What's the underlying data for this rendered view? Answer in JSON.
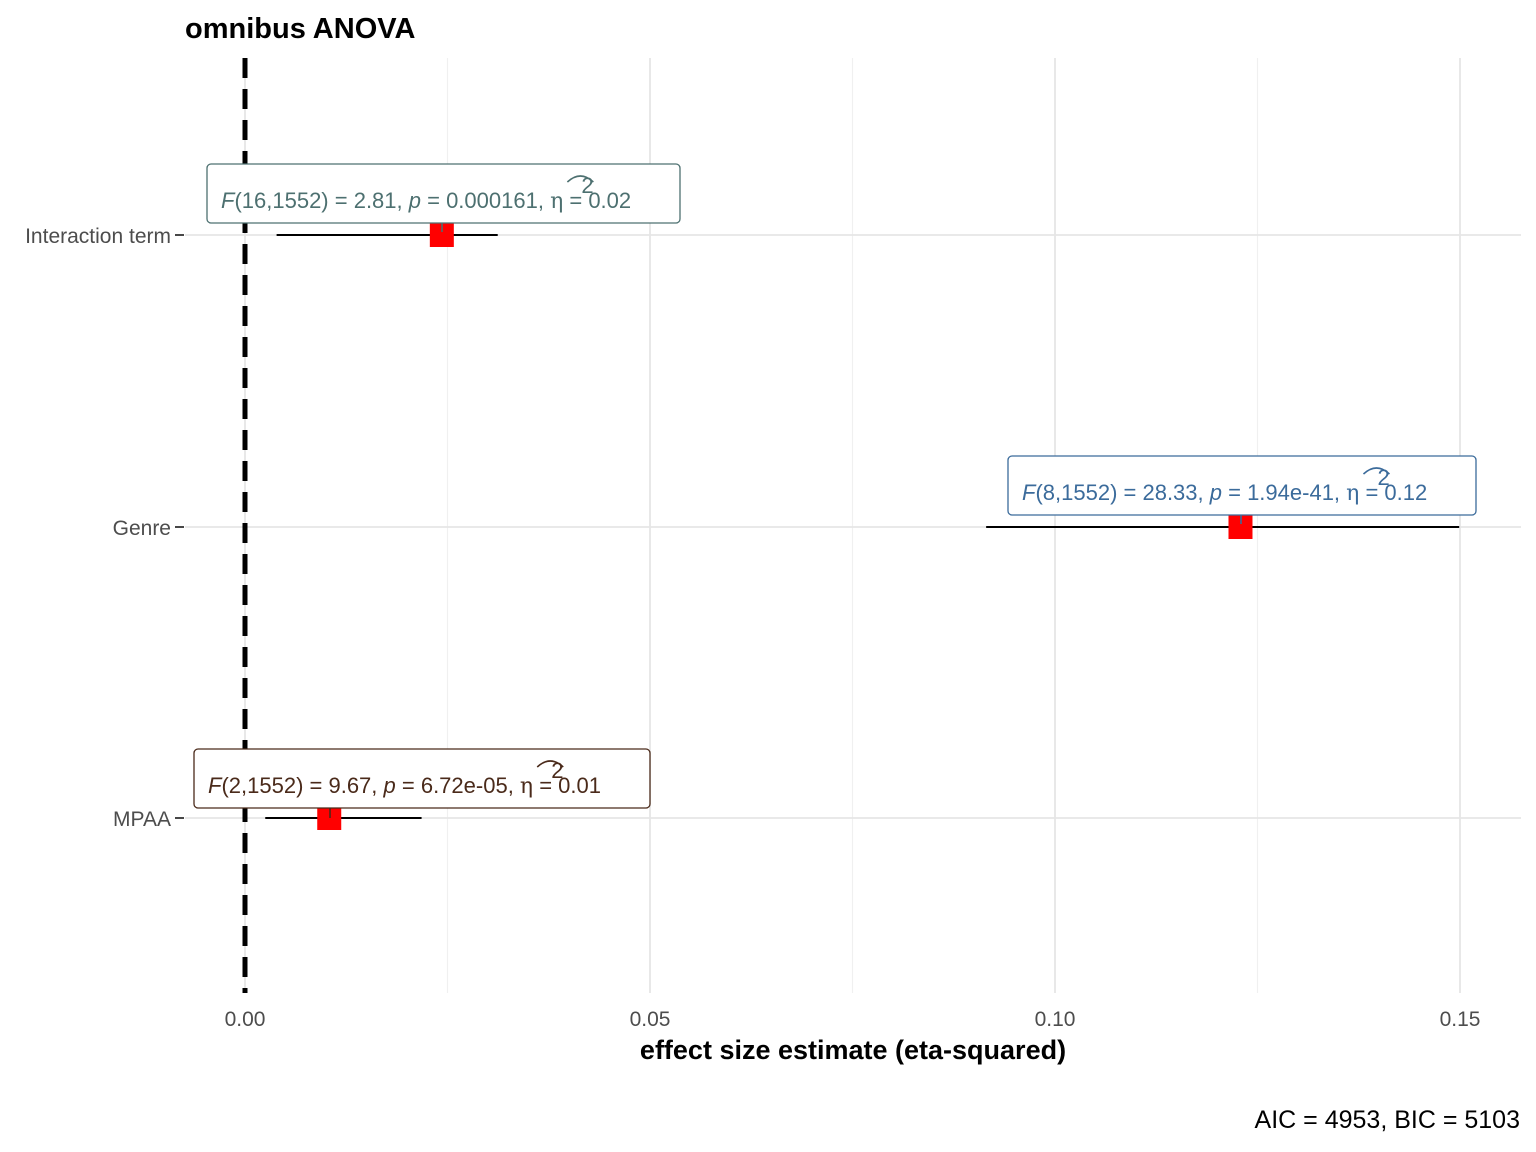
{
  "chart_data": {
    "type": "scatter",
    "title": "omnibus ANOVA",
    "xlabel": "effect size estimate (eta-squared)",
    "caption": "AIC = 4953, BIC = 5103",
    "categories": [
      "Interaction term",
      "Genre",
      "MPAA"
    ],
    "xlim": [
      -0.016,
      0.157
    ],
    "x_ticks": [
      "0.00",
      "0.05",
      "0.10",
      "0.15"
    ],
    "x_tick_values": [
      0.0,
      0.05,
      0.1,
      0.15
    ],
    "reference_line": 0,
    "grid": true,
    "points": [
      {
        "term": "Interaction term",
        "estimate": 0.0243,
        "ci_low": 0.0039,
        "ci_high": 0.0312,
        "label_color": "#4d7070",
        "label": {
          "stat": "F",
          "df": "(16,1552)",
          "F": "2.81",
          "p": "0.000161",
          "eta2": "0.02"
        }
      },
      {
        "term": "Genre",
        "estimate": 0.1229,
        "ci_low": 0.0915,
        "ci_high": 0.1499,
        "label_color": "#3b6b9b",
        "label": {
          "stat": "F",
          "df": "(8,1552)",
          "F": "28.33",
          "p": "1.94e-41",
          "eta2": "0.12"
        }
      },
      {
        "term": "MPAA",
        "estimate": 0.0104,
        "ci_low": 0.0025,
        "ci_high": 0.0218,
        "label_color": "#4a2a1a",
        "label": {
          "stat": "F",
          "df": "(2,1552)",
          "F": "9.67",
          "p": "6.72e-05",
          "eta2": "0.01"
        }
      }
    ],
    "point_color": "#ff0000"
  }
}
